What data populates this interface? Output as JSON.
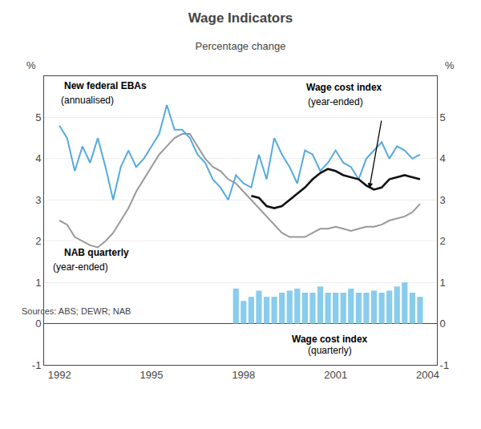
{
  "chart_data": {
    "type": "bar",
    "title": "Wage Indicators",
    "subtitle": "Percentage change",
    "ylabel": "%",
    "y2label": "%",
    "source": "Sources: ABS; DEWR; NAB",
    "annotations": [
      "New federal EBAs",
      "(annualised)",
      "Wage cost index",
      "(year-ended)",
      "NAB quarterly",
      "(year-ended)",
      "Wage cost index",
      "(quarterly)"
    ],
    "xlim": [
      1991.5,
      2004.3
    ],
    "xticks": [
      1992,
      1995,
      1998,
      2001,
      2004
    ],
    "ylim": [
      -1,
      6
    ],
    "yticks": [
      -1,
      0,
      1,
      2,
      3,
      4,
      5
    ],
    "y2lim": [
      -1,
      6
    ],
    "y2ticks": [
      -1,
      0,
      1,
      2,
      3,
      4,
      5
    ],
    "grid": true,
    "series": [
      {
        "type": "bar",
        "color": "#88ccee",
        "x": [
          1997.75,
          1998.0,
          1998.25,
          1998.5,
          1998.75,
          1999.0,
          1999.25,
          1999.5,
          1999.75,
          2000.0,
          2000.25,
          2000.5,
          2000.75,
          2001.0,
          2001.25,
          2001.5,
          2001.75,
          2002.0,
          2002.25,
          2002.5,
          2002.75,
          2003.0,
          2003.25,
          2003.5,
          2003.75
        ],
        "values": [
          0.85,
          0.55,
          0.65,
          0.8,
          0.65,
          0.65,
          0.75,
          0.8,
          0.85,
          0.75,
          0.75,
          0.9,
          0.75,
          0.75,
          0.75,
          0.85,
          0.75,
          0.75,
          0.8,
          0.75,
          0.8,
          0.9,
          1.0,
          0.75,
          0.65
        ]
      },
      {
        "type": "line",
        "color": "#999999",
        "x": [
          1992.0,
          1992.25,
          1992.5,
          1992.75,
          1993.0,
          1993.25,
          1993.5,
          1993.75,
          1994.0,
          1994.25,
          1994.5,
          1994.75,
          1995.0,
          1995.25,
          1995.5,
          1995.75,
          1996.0,
          1996.25,
          1996.5,
          1996.75,
          1997.0,
          1997.25,
          1997.5,
          1997.75,
          1998.0,
          1998.25,
          1998.5,
          1998.75,
          1999.0,
          1999.25,
          1999.5,
          1999.75,
          2000.0,
          2000.25,
          2000.5,
          2000.75,
          2001.0,
          2001.25,
          2001.5,
          2001.75,
          2002.0,
          2002.25,
          2002.5,
          2002.75,
          2003.0,
          2003.25,
          2003.5,
          2003.75
        ],
        "values": [
          2.5,
          2.4,
          2.1,
          2.0,
          1.9,
          1.85,
          2.0,
          2.2,
          2.5,
          2.8,
          3.2,
          3.5,
          3.8,
          4.1,
          4.3,
          4.5,
          4.6,
          4.6,
          4.3,
          4.0,
          3.8,
          3.7,
          3.5,
          3.4,
          3.2,
          3.0,
          2.8,
          2.6,
          2.4,
          2.2,
          2.1,
          2.1,
          2.1,
          2.2,
          2.3,
          2.3,
          2.35,
          2.3,
          2.25,
          2.3,
          2.35,
          2.35,
          2.4,
          2.5,
          2.55,
          2.6,
          2.7,
          2.9
        ]
      },
      {
        "type": "line",
        "color": "#55aadd",
        "x": [
          1992.0,
          1992.25,
          1992.5,
          1992.75,
          1993.0,
          1993.25,
          1993.5,
          1993.75,
          1994.0,
          1994.25,
          1994.5,
          1994.75,
          1995.0,
          1995.25,
          1995.5,
          1995.75,
          1996.0,
          1996.25,
          1996.5,
          1996.75,
          1997.0,
          1997.25,
          1997.5,
          1997.75,
          1998.0,
          1998.25,
          1998.5,
          1998.75,
          1999.0,
          1999.25,
          1999.5,
          1999.75,
          2000.0,
          2000.25,
          2000.5,
          2000.75,
          2001.0,
          2001.25,
          2001.5,
          2001.75,
          2002.0,
          2002.25,
          2002.5,
          2002.75,
          2003.0,
          2003.25,
          2003.5,
          2003.75
        ],
        "values": [
          4.8,
          4.5,
          3.7,
          4.3,
          3.9,
          4.5,
          3.8,
          3.0,
          3.8,
          4.2,
          3.8,
          4.0,
          4.3,
          4.6,
          5.3,
          4.7,
          4.7,
          4.5,
          4.1,
          3.9,
          3.5,
          3.3,
          3.0,
          3.6,
          3.4,
          3.3,
          4.1,
          3.5,
          4.5,
          4.1,
          3.8,
          3.4,
          4.2,
          4.1,
          3.7,
          3.9,
          4.2,
          3.9,
          3.8,
          3.5,
          4.0,
          4.2,
          4.4,
          4.0,
          4.3,
          4.2,
          4.0,
          4.1
        ]
      },
      {
        "type": "line",
        "color": "#111111",
        "x": [
          1998.25,
          1998.5,
          1998.75,
          1999.0,
          1999.25,
          1999.5,
          1999.75,
          2000.0,
          2000.25,
          2000.5,
          2000.75,
          2001.0,
          2001.25,
          2001.5,
          2001.75,
          2002.0,
          2002.25,
          2002.5,
          2002.75,
          2003.0,
          2003.25,
          2003.5,
          2003.75
        ],
        "values": [
          3.1,
          3.05,
          2.85,
          2.8,
          2.85,
          3.0,
          3.15,
          3.3,
          3.5,
          3.65,
          3.75,
          3.7,
          3.6,
          3.55,
          3.5,
          3.35,
          3.25,
          3.3,
          3.5,
          3.55,
          3.6,
          3.55,
          3.5
        ]
      }
    ]
  }
}
